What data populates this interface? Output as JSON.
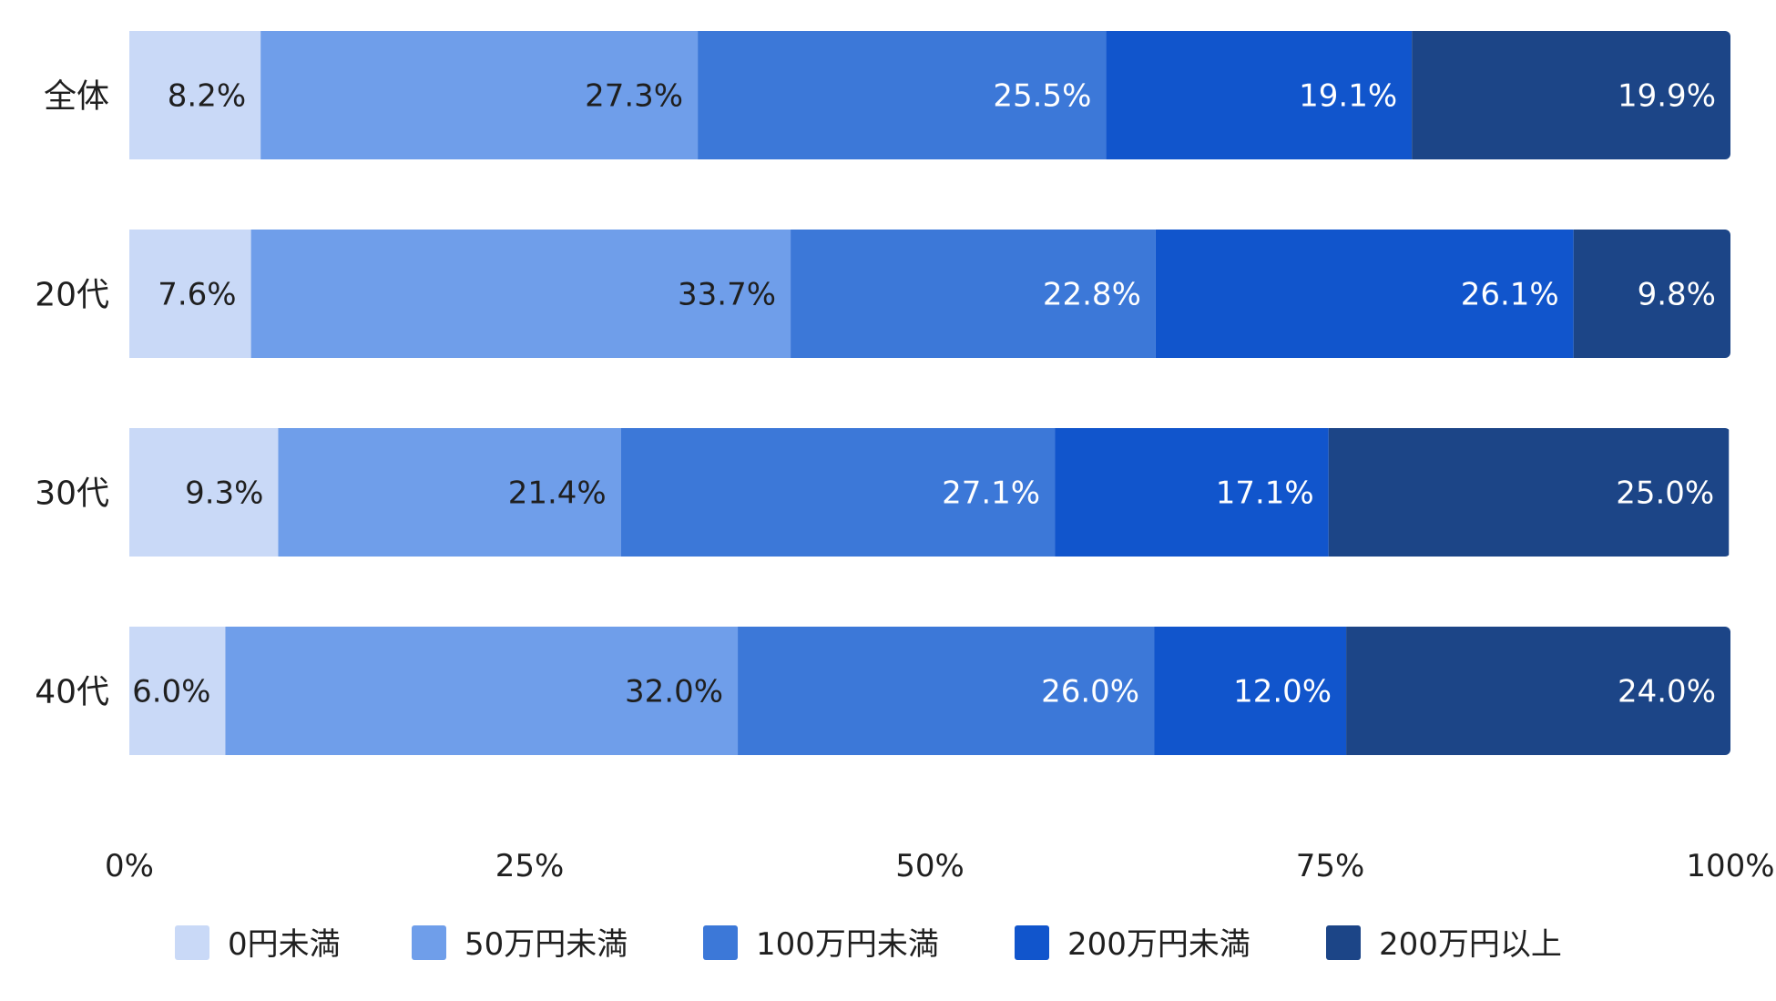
{
  "chart_data": {
    "type": "bar",
    "orientation": "horizontal",
    "stacked": true,
    "percent_stacked": true,
    "categories": [
      "全体",
      "20代",
      "30代",
      "40代"
    ],
    "series": [
      {
        "name": "0円未満",
        "values": [
          8.2,
          7.6,
          9.3,
          6.0
        ],
        "color": "#c9d9f7"
      },
      {
        "name": "50万円未満",
        "values": [
          27.3,
          33.7,
          21.4,
          32.0
        ],
        "color": "#6f9eea"
      },
      {
        "name": "100万円未満",
        "values": [
          25.5,
          22.8,
          27.1,
          26.0
        ],
        "color": "#3c78d8"
      },
      {
        "name": "200万円未満",
        "values": [
          19.1,
          26.1,
          17.1,
          12.0
        ],
        "color": "#1155cc"
      },
      {
        "name": "200万円以上",
        "values": [
          19.9,
          9.8,
          25.0,
          24.0
        ],
        "color": "#1c4587"
      }
    ],
    "data_labels": [
      [
        "8.2%",
        "27.3%",
        "25.5%",
        "19.1%",
        "19.9%"
      ],
      [
        "7.6%",
        "33.7%",
        "22.8%",
        "26.1%",
        "9.8%"
      ],
      [
        "9.3%",
        "21.4%",
        "27.1%",
        "17.1%",
        "25.0%"
      ],
      [
        "6.0%",
        "32.0%",
        "26.0%",
        "12.0%",
        "24.0%"
      ]
    ],
    "label_colors": [
      "#1f1f1f",
      "#1f1f1f",
      "#ffffff",
      "#ffffff",
      "#ffffff"
    ],
    "x_ticks": [
      0,
      25,
      50,
      75,
      100
    ],
    "x_tick_labels": [
      "0%",
      "25%",
      "50%",
      "75%",
      "100%"
    ],
    "xlim": [
      0,
      100
    ],
    "grid": false,
    "legend_position": "bottom",
    "title": "",
    "xlabel": "",
    "ylabel": ""
  }
}
